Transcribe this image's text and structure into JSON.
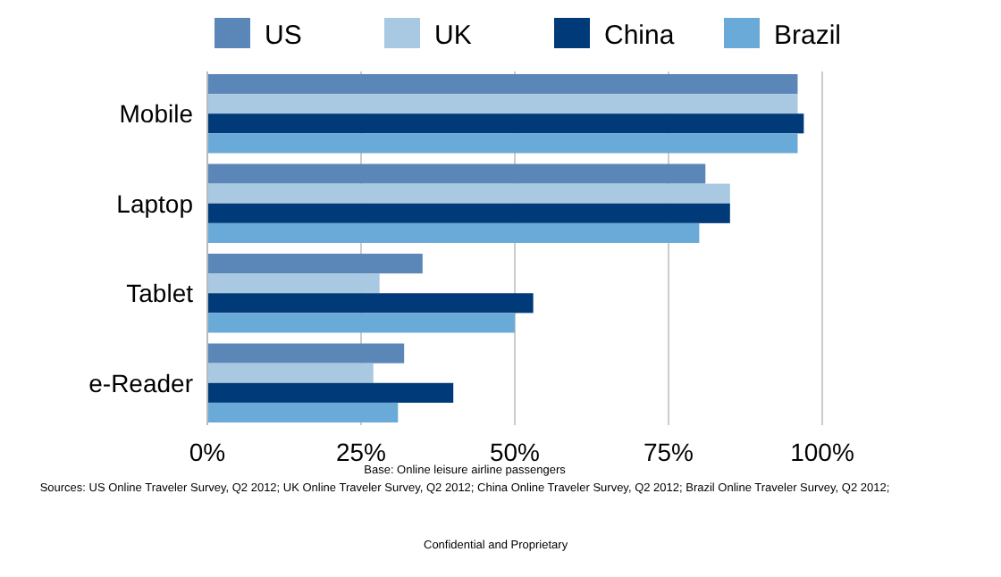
{
  "chart_data": {
    "type": "bar",
    "orientation": "horizontal",
    "categories": [
      "Mobile",
      "Laptop",
      "Tablet",
      "e-Reader"
    ],
    "series": [
      {
        "name": "US",
        "color": "#5b87b8",
        "values": [
          96,
          81,
          35,
          32
        ]
      },
      {
        "name": "UK",
        "color": "#a9c8e2",
        "values": [
          96,
          85,
          28,
          27
        ]
      },
      {
        "name": "China",
        "color": "#003a78",
        "values": [
          97,
          85,
          53,
          40
        ]
      },
      {
        "name": "Brazil",
        "color": "#6aaad8",
        "values": [
          96,
          80,
          50,
          31
        ]
      }
    ],
    "xlim": [
      0,
      100
    ],
    "xticks": [
      {
        "value": 0,
        "label": "0%"
      },
      {
        "value": 25,
        "label": "25%"
      },
      {
        "value": 50,
        "label": "50%"
      },
      {
        "value": 75,
        "label": "75%"
      },
      {
        "value": 100,
        "label": "100%"
      }
    ],
    "grid": "x",
    "legend": "top",
    "annotations": [
      "Base: Online leisure airline passengers",
      "Sources: US Online Traveler Survey, Q2 2012; UK Online Traveler Survey, Q2 2012; China Online Traveler Survey, Q2 2012; Brazil Online Traveler Survey, Q2 2012;",
      "Confidential and Proprietary"
    ]
  }
}
